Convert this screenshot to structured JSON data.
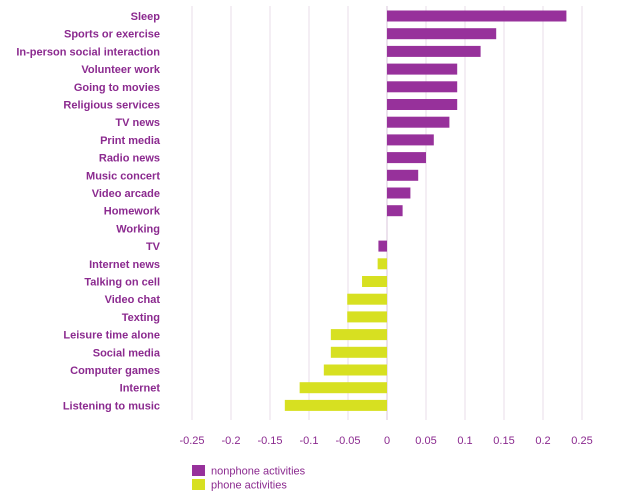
{
  "chart_data": {
    "type": "bar",
    "orientation": "horizontal",
    "title": "",
    "xlabel": "",
    "ylabel": "",
    "xlim": [
      -0.25,
      0.25
    ],
    "x_ticks": [
      -0.25,
      -0.2,
      -0.15,
      -0.1,
      -0.05,
      0,
      0.05,
      0.1,
      0.15,
      0.2,
      0.25
    ],
    "x_tick_labels": [
      "-0.25",
      "-0.2",
      "-0.15",
      "-0.1",
      "-0.05",
      "0",
      "0.05",
      "0.1",
      "0.15",
      "0.2",
      "0.25"
    ],
    "grid": "vertical",
    "legend_position": "bottom-left",
    "series": [
      {
        "name": "nonphone activities",
        "color": "#97319b"
      },
      {
        "name": "phone activities",
        "color": "#d7e021"
      }
    ],
    "bars": [
      {
        "category": "Sleep",
        "value": 0.23,
        "series": "nonphone activities"
      },
      {
        "category": "Sports or exercise",
        "value": 0.14,
        "series": "nonphone activities"
      },
      {
        "category": "In-person social interaction",
        "value": 0.12,
        "series": "nonphone activities"
      },
      {
        "category": "Volunteer work",
        "value": 0.09,
        "series": "nonphone activities"
      },
      {
        "category": "Going to movies",
        "value": 0.09,
        "series": "nonphone activities"
      },
      {
        "category": "Religious services",
        "value": 0.09,
        "series": "nonphone activities"
      },
      {
        "category": "TV news",
        "value": 0.08,
        "series": "nonphone activities"
      },
      {
        "category": "Print media",
        "value": 0.06,
        "series": "nonphone activities"
      },
      {
        "category": "Radio news",
        "value": 0.05,
        "series": "nonphone activities"
      },
      {
        "category": "Music concert",
        "value": 0.04,
        "series": "nonphone activities"
      },
      {
        "category": "Video arcade",
        "value": 0.03,
        "series": "nonphone activities"
      },
      {
        "category": "Homework",
        "value": 0.02,
        "series": "nonphone activities"
      },
      {
        "category": "Working",
        "value": 0.0,
        "series": "nonphone activities"
      },
      {
        "category": "TV",
        "value": -0.011,
        "series": "nonphone activities"
      },
      {
        "category": "Internet news",
        "value": -0.012,
        "series": "phone activities"
      },
      {
        "category": "Talking on cell",
        "value": -0.032,
        "series": "phone activities"
      },
      {
        "category": "Video chat",
        "value": -0.051,
        "series": "phone activities"
      },
      {
        "category": "Texting",
        "value": -0.051,
        "series": "phone activities"
      },
      {
        "category": "Leisure time alone",
        "value": -0.072,
        "series": "phone activities"
      },
      {
        "category": "Social media",
        "value": -0.072,
        "series": "phone activities"
      },
      {
        "category": "Computer games",
        "value": -0.081,
        "series": "phone activities"
      },
      {
        "category": "Internet",
        "value": -0.112,
        "series": "phone activities"
      },
      {
        "category": "Listening to music",
        "value": -0.131,
        "series": "phone activities"
      }
    ]
  }
}
